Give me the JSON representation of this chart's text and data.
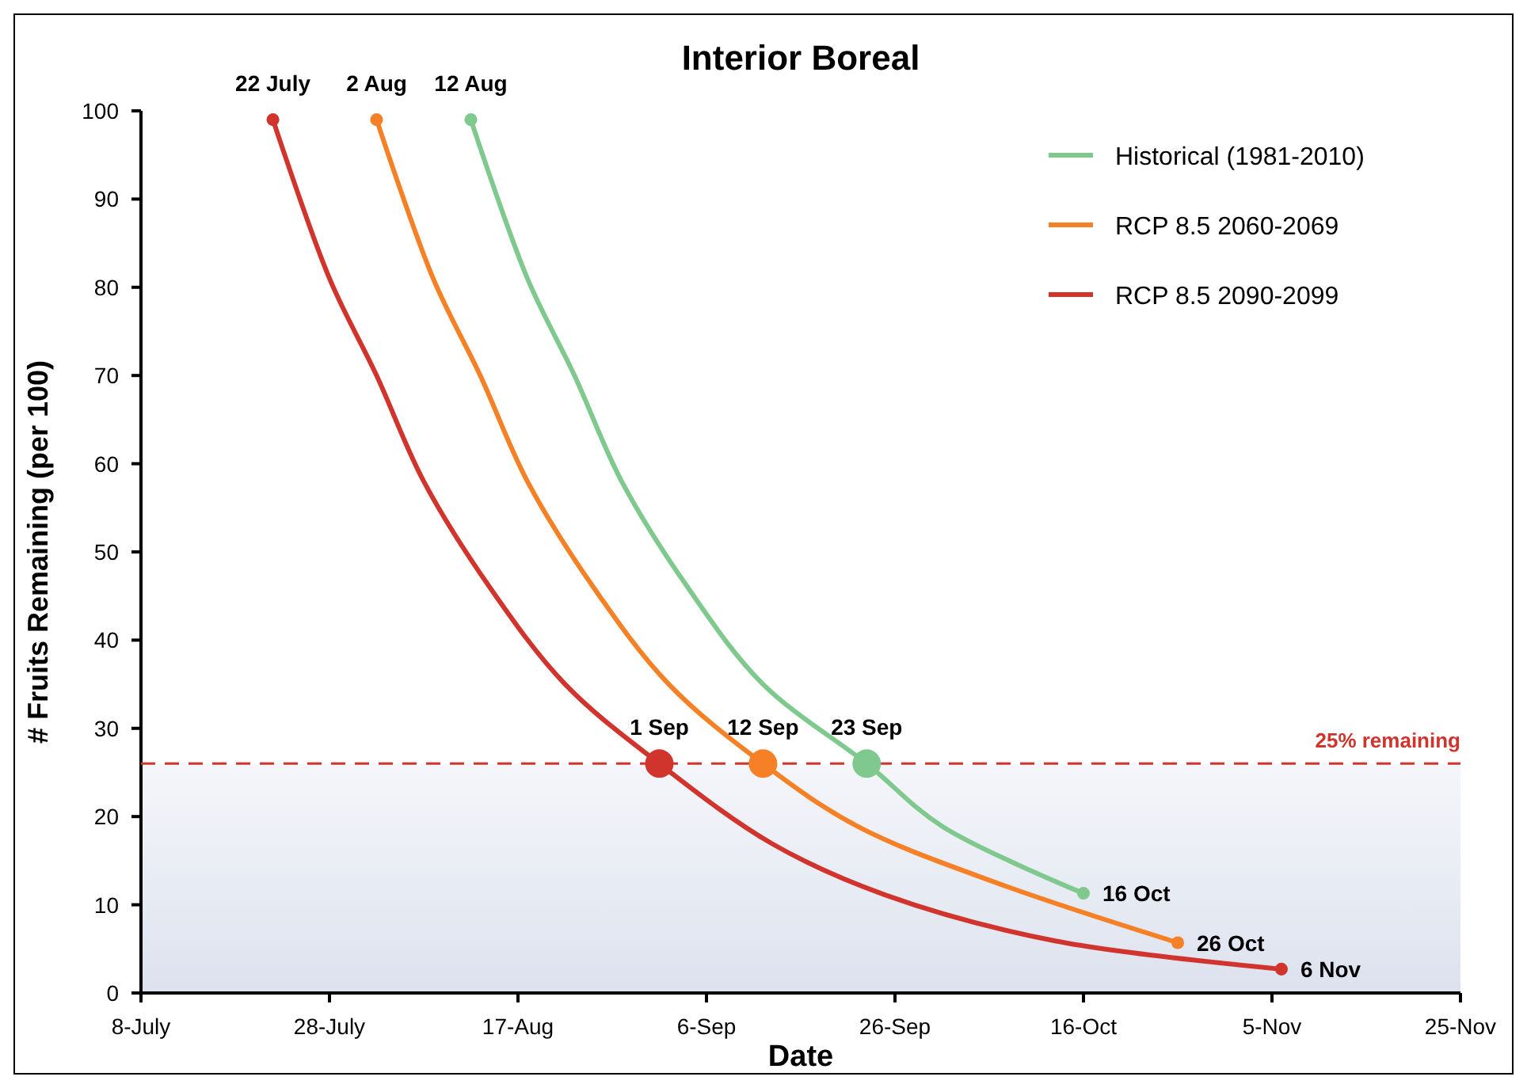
{
  "chart_data": {
    "type": "line",
    "title": "Interior Boreal",
    "xlabel": "Date",
    "ylabel": "# Fruits Remaining (per 100)",
    "xlim": [
      "--07-08",
      "--11-25"
    ],
    "xticks": [
      {
        "value": "--07-08",
        "label": "8-July"
      },
      {
        "value": "--07-28",
        "label": "28-July"
      },
      {
        "value": "--08-17",
        "label": "17-Aug"
      },
      {
        "value": "--09-06",
        "label": "6-Sep"
      },
      {
        "value": "--09-26",
        "label": "26-Sep"
      },
      {
        "value": "--10-16",
        "label": "16-Oct"
      },
      {
        "value": "--11-05",
        "label": "5-Nov"
      },
      {
        "value": "--11-25",
        "label": "25-Nov"
      }
    ],
    "ylim": [
      0,
      100
    ],
    "yticks": [
      0,
      10,
      20,
      30,
      40,
      50,
      60,
      70,
      80,
      90,
      100
    ],
    "grid": false,
    "legend": "top right",
    "line_style": "solid",
    "series": [
      {
        "name": "Historical (1981-2010)",
        "marker": "none",
        "color": "#7fc98f",
        "x": [
          "--08-12",
          "--08-18",
          "--08-23",
          "--08-28",
          "--09-04",
          "--09-12",
          "--09-23",
          "--10-01",
          "--10-16"
        ],
        "values": [
          99,
          81,
          70,
          58,
          46,
          35,
          26,
          18.9,
          11.3
        ]
      },
      {
        "name": "RCP 8.5 2060-2069",
        "marker": "none",
        "color": "#f58025",
        "x": [
          "--08-02",
          "--08-08",
          "--08-13",
          "--08-18",
          "--08-25",
          "--09-02",
          "--09-12",
          "--09-22",
          "--10-07",
          "--10-26"
        ],
        "values": [
          99,
          81,
          70,
          58,
          46,
          35,
          26,
          18.9,
          12.4,
          5.7
        ]
      },
      {
        "name": "RCP 8.5 2090-2099",
        "marker": "none",
        "color": "#d0342c",
        "x": [
          "--07-22",
          "--07-28",
          "--08-02",
          "--08-07",
          "--08-14",
          "--08-22",
          "--09-01",
          "--09-13",
          "--09-25",
          "--10-13",
          "--11-06"
        ],
        "values": [
          99,
          81,
          70,
          58,
          46,
          35,
          26,
          16.9,
          11.1,
          5.9,
          2.7
        ]
      },
      {
        "type": "bubble",
        "marker": "circle",
        "color": "#7fc98f",
        "x": [
          "--08-12",
          "--09-23",
          "--10-16"
        ],
        "values": [
          99,
          26,
          11.3
        ],
        "sizes": [
          0.2,
          1,
          0.2
        ]
      },
      {
        "type": "bubble",
        "marker": "circle",
        "color": "#f58025",
        "x": [
          "--08-02",
          "--09-12",
          "--10-26"
        ],
        "values": [
          99,
          26,
          5.7
        ],
        "sizes": [
          0.2,
          1,
          0.2
        ]
      },
      {
        "type": "bubble",
        "marker": "circle",
        "color": "#d0342c",
        "x": [
          "--07-22",
          "--09-01",
          "--11-06"
        ],
        "values": [
          99,
          26,
          2.7
        ],
        "sizes": [
          0.2,
          1,
          0.2
        ]
      }
    ],
    "ref_lines": [
      {
        "axis": "y",
        "value": 26,
        "label": "25% remaining",
        "color": "#d0342c",
        "line_style": "dashed"
      }
    ],
    "bands": [
      {
        "axis": "y",
        "from": 0,
        "to": 26,
        "color": "#dce2ee"
      }
    ],
    "annotations": [
      {
        "text": "22 July",
        "x": "--07-22",
        "y": 99
      },
      {
        "text": "2 Aug",
        "x": "--08-02",
        "y": 99
      },
      {
        "text": "12 Aug",
        "x": "--08-12",
        "y": 99
      },
      {
        "text": "1 Sep",
        "x": "--09-01",
        "y": 26
      },
      {
        "text": "12 Sep",
        "x": "--09-12",
        "y": 26
      },
      {
        "text": "23 Sep",
        "x": "--09-23",
        "y": 26
      },
      {
        "text": "16 Oct",
        "x": "--10-16",
        "y": 11.3
      },
      {
        "text": "26 Oct",
        "x": "--10-26",
        "y": 5.7
      },
      {
        "text": "6 Nov",
        "x": "--11-06",
        "y": 2.7
      }
    ]
  }
}
